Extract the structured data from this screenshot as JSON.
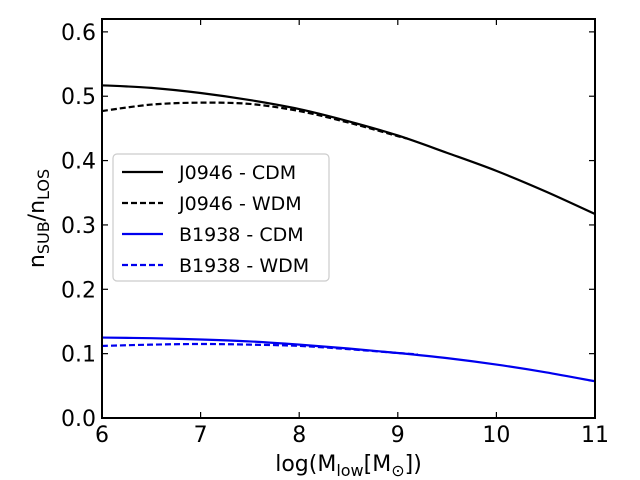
{
  "chart_data": {
    "type": "line",
    "title": "",
    "xlabel": "log(M_low[M_⊙])",
    "xlabel_parts": {
      "pre": "log(M",
      "sub1": "low",
      "mid": "[M",
      "sub2": "⊙",
      "post": "])"
    },
    "ylabel": "n_SUB/n_LOS",
    "ylabel_parts": {
      "n1": "n",
      "sub1": "SUB",
      "slash": "/n",
      "sub2": "LOS"
    },
    "xlim": [
      6,
      11
    ],
    "ylim": [
      0.0,
      0.62
    ],
    "xticks": [
      6,
      7,
      8,
      9,
      10,
      11
    ],
    "xtick_labels": [
      "6",
      "7",
      "8",
      "9",
      "10",
      "11"
    ],
    "yticks": [
      0.0,
      0.1,
      0.2,
      0.3,
      0.4,
      0.5,
      0.6
    ],
    "ytick_labels": [
      "0.0",
      "0.1",
      "0.2",
      "0.3",
      "0.4",
      "0.5",
      "0.6"
    ],
    "grid": false,
    "legend_position": "center-left",
    "series": [
      {
        "name": "J0946 - CDM",
        "color": "#000000",
        "style": "solid",
        "x": [
          6,
          6.5,
          7,
          7.5,
          8,
          8.5,
          9,
          9.5,
          10,
          10.5,
          11
        ],
        "y": [
          0.517,
          0.513,
          0.505,
          0.494,
          0.48,
          0.461,
          0.439,
          0.412,
          0.384,
          0.352,
          0.317
        ]
      },
      {
        "name": "J0946 - WDM",
        "color": "#000000",
        "style": "dashed",
        "x": [
          6,
          6.5,
          7,
          7.5,
          8,
          8.5,
          9,
          9.1
        ],
        "y": [
          0.477,
          0.487,
          0.49,
          0.488,
          0.477,
          0.459,
          0.438,
          0.434
        ]
      },
      {
        "name": "B1938 - CDM",
        "color": "#0000ee",
        "style": "solid",
        "x": [
          6,
          6.5,
          7,
          7.5,
          8,
          8.5,
          9,
          9.5,
          10,
          10.5,
          11
        ],
        "y": [
          0.125,
          0.124,
          0.122,
          0.119,
          0.114,
          0.108,
          0.101,
          0.093,
          0.083,
          0.071,
          0.057
        ]
      },
      {
        "name": "B1938 - WDM",
        "color": "#0000ee",
        "style": "dashed",
        "x": [
          6,
          6.5,
          7,
          7.5,
          8,
          8.5,
          9,
          9.2
        ],
        "y": [
          0.112,
          0.114,
          0.115,
          0.114,
          0.112,
          0.107,
          0.101,
          0.099
        ]
      }
    ]
  }
}
